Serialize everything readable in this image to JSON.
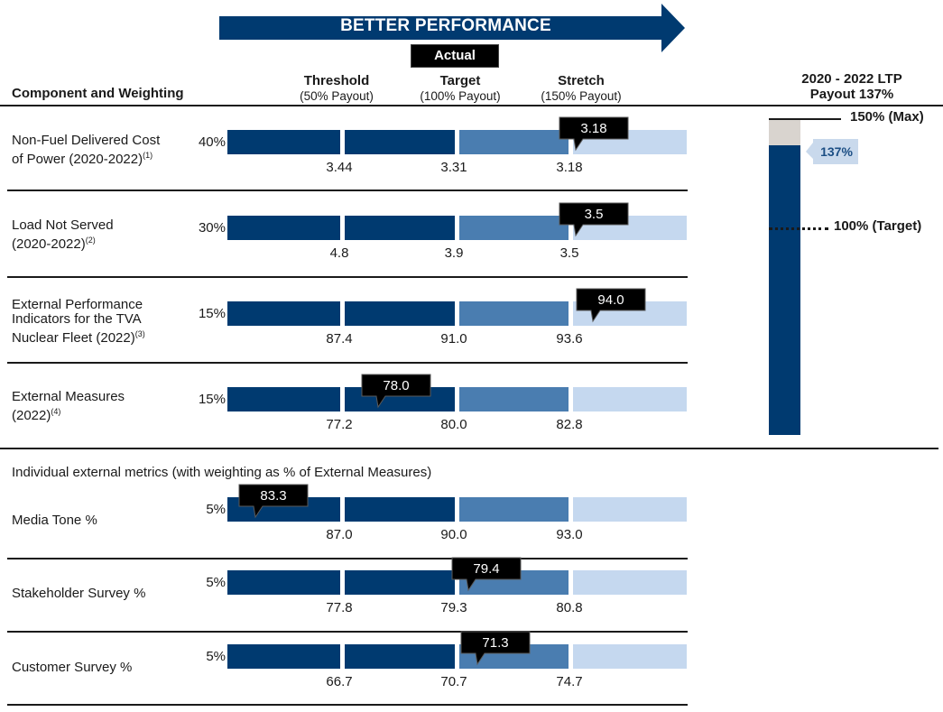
{
  "banner": {
    "title": "BETTER PERFORMANCE",
    "actual_label": "Actual"
  },
  "columns": {
    "component_header": "Component and Weighting",
    "threshold": {
      "label": "Threshold",
      "sub": "(50% Payout)"
    },
    "target": {
      "label": "Target",
      "sub": "(100% Payout)"
    },
    "stretch": {
      "label": "Stretch",
      "sub": "(150% Payout)"
    }
  },
  "ltp": {
    "title_line1": "2020 - 2022 LTP",
    "title_line2": "Payout 137%",
    "max_label": "150% (Max)",
    "target_label": "100% (Target)",
    "value_label": "137%",
    "value_pct": 137,
    "max_pct": 150,
    "target_pct": 100
  },
  "section_title": "Individual external metrics (with weighting as % of External Measures)",
  "colors": {
    "dark_navy": "#003a70",
    "mid_blue": "#4a7db0",
    "light_blue": "#c5d8ef",
    "callout_black": "#000000",
    "ltp_cap_gray": "#d9d4cf"
  },
  "chart_data": {
    "type": "bar",
    "segments": [
      "Threshold",
      "Target",
      "Stretch"
    ],
    "rows": [
      {
        "label_line1": "Non-Fuel Delivered Cost",
        "label_line2": "of Power (2020-2022)",
        "note": "(1)",
        "weight": "40%",
        "threshold": "3.44",
        "target": "3.31",
        "stretch": "3.18",
        "actual": "3.18",
        "actual_position": 3.0
      },
      {
        "label_line1": "Load Not Served",
        "label_line2": "(2020-2022)",
        "note": "(2)",
        "weight": "30%",
        "threshold": "4.8",
        "target": "3.9",
        "stretch": "3.5",
        "actual": "3.5",
        "actual_position": 3.0
      },
      {
        "label_line1": "External Performance",
        "label_line2": "Indicators for the TVA",
        "label_line3": "Nuclear Fleet (2022)",
        "note": "(3)",
        "weight": "15%",
        "threshold": "87.4",
        "target": "91.0",
        "stretch": "93.6",
        "actual": "94.0",
        "actual_position": 3.15
      },
      {
        "label_line1": "External Measures",
        "label_line2": "(2022)",
        "note": "(4)",
        "weight": "15%",
        "threshold": "77.2",
        "target": "80.0",
        "stretch": "82.8",
        "actual": "78.0",
        "actual_position": 1.29
      },
      {
        "label_line1": "Media Tone %",
        "weight": "5%",
        "threshold": "87.0",
        "target": "90.0",
        "stretch": "93.0",
        "actual": "83.3",
        "actual_position": 0.23
      },
      {
        "label_line1": "Stakeholder Survey %",
        "weight": "5%",
        "threshold": "77.8",
        "target": "79.3",
        "stretch": "80.8",
        "actual": "79.4",
        "actual_position": 2.07
      },
      {
        "label_line1": "Customer Survey %",
        "weight": "5%",
        "threshold": "66.7",
        "target": "70.7",
        "stretch": "74.7",
        "actual": "71.3",
        "actual_position": 2.15
      }
    ]
  }
}
